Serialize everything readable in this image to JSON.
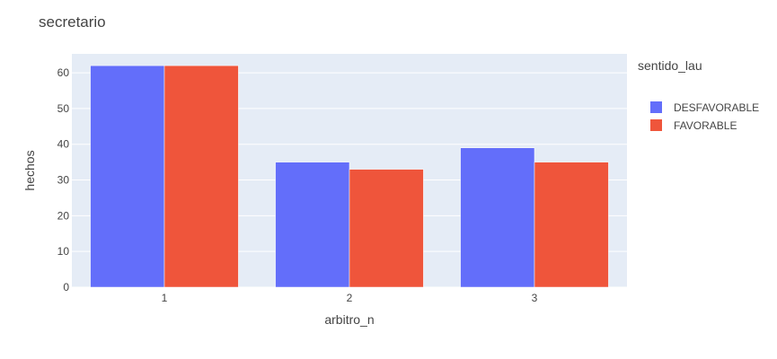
{
  "chart_data": {
    "type": "bar",
    "title": "secretario",
    "xlabel": "arbitro_n",
    "ylabel": "hechos",
    "categories": [
      "1",
      "2",
      "3"
    ],
    "series": [
      {
        "name": "DESFAVORABLE",
        "color": "#636efa",
        "values": [
          62,
          35,
          39
        ]
      },
      {
        "name": "FAVORABLE",
        "color": "#ef553b",
        "values": [
          62,
          33,
          35
        ]
      }
    ],
    "ylim": [
      0,
      65.3
    ],
    "yticks": [
      0,
      10,
      20,
      30,
      40,
      50,
      60
    ],
    "grid": true,
    "legend": {
      "title": "sentido_lau",
      "placement": "right"
    },
    "plot_background": "#e5ecf6"
  }
}
